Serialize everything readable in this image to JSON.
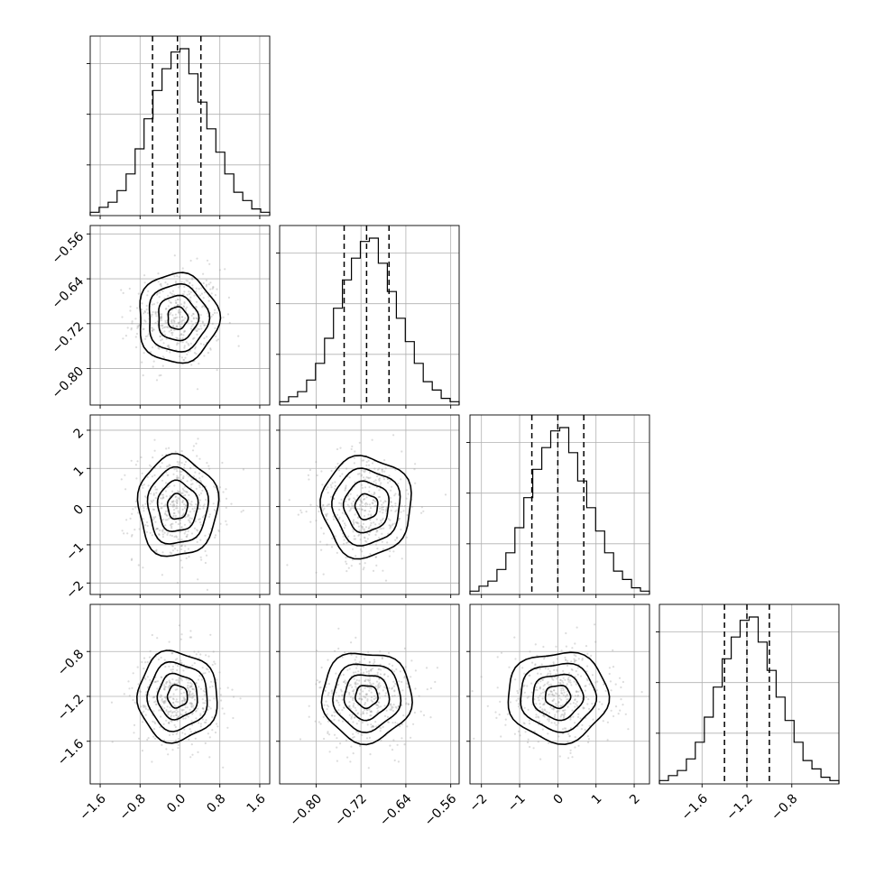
{
  "chart_data": {
    "type": "corner",
    "grid": true,
    "parameters": [
      {
        "id": "p0",
        "range": [
          -1.8,
          1.8
        ],
        "median": -0.05,
        "quantiles": [
          -0.55,
          -0.05,
          0.42
        ],
        "sigma": 0.4,
        "ticks": [
          -1.6,
          -0.8,
          0.0,
          0.8,
          1.6
        ],
        "tick_labels": [
          "−1.6",
          "−0.8",
          "0.0",
          "0.8",
          "1.6"
        ]
      },
      {
        "id": "p1",
        "range": [
          -0.865,
          -0.545
        ],
        "median": -0.71,
        "quantiles": [
          -0.75,
          -0.71,
          -0.67
        ],
        "sigma": 0.04,
        "ticks": [
          -0.8,
          -0.72,
          -0.64,
          -0.56
        ],
        "tick_labels": [
          "−0.80",
          "−0.72",
          "−0.64",
          "−0.56"
        ]
      },
      {
        "id": "p2",
        "range": [
          -2.3,
          2.4
        ],
        "median": 0.0,
        "quantiles": [
          -0.68,
          0.0,
          0.68
        ],
        "sigma": 0.66,
        "ticks": [
          -2,
          -1,
          0,
          1,
          2
        ],
        "tick_labels": [
          "−2",
          "−1",
          "0",
          "1",
          "2"
        ]
      },
      {
        "id": "p3",
        "range": [
          -1.98,
          -0.38
        ],
        "median": -1.2,
        "quantiles": [
          -1.4,
          -1.2,
          -1.0
        ],
        "sigma": 0.2,
        "ticks": [
          -1.6,
          -1.2,
          -0.8
        ],
        "tick_labels": [
          "−1.6",
          "−1.2",
          "−0.8"
        ]
      }
    ],
    "histograms": [
      {
        "param": "p0",
        "bins_range": [
          -1.8,
          1.8
        ],
        "counts": [
          2,
          5,
          8,
          15,
          25,
          40,
          58,
          75,
          88,
          98,
          100,
          85,
          68,
          52,
          38,
          25,
          14,
          9,
          4,
          2
        ]
      },
      {
        "param": "p1",
        "bins_range": [
          -0.865,
          -0.545
        ],
        "counts": [
          2,
          5,
          8,
          15,
          25,
          40,
          58,
          75,
          88,
          98,
          100,
          85,
          68,
          52,
          38,
          25,
          14,
          9,
          4,
          2
        ]
      },
      {
        "param": "p2",
        "bins_range": [
          -2.3,
          2.4
        ],
        "counts": [
          2,
          5,
          8,
          15,
          25,
          40,
          58,
          75,
          88,
          98,
          100,
          85,
          68,
          52,
          38,
          25,
          14,
          9,
          4,
          2
        ]
      },
      {
        "param": "p3",
        "bins_range": [
          -1.98,
          -0.38
        ],
        "counts": [
          2,
          5,
          8,
          15,
          25,
          40,
          58,
          75,
          88,
          98,
          100,
          85,
          68,
          52,
          38,
          25,
          14,
          9,
          4,
          2
        ]
      }
    ],
    "contour_levels_sigma": [
      0.5,
      1.0,
      1.5,
      2.0
    ],
    "points_per_panel": 450
  }
}
